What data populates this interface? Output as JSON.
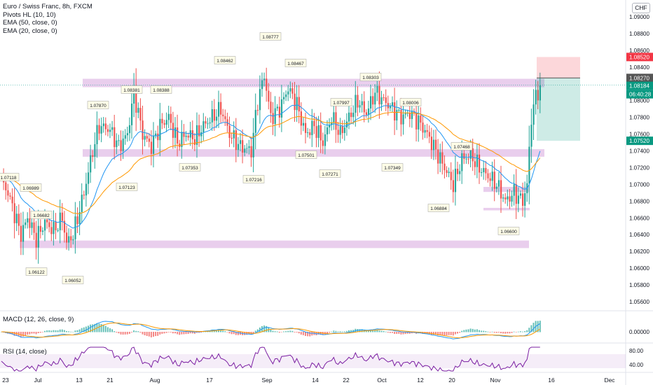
{
  "header": {
    "symbol": "Euro / Swiss Franc, 8h, FXCM",
    "indicators": [
      "Pivots HL (10, 10)",
      "EMA (50, close, 0)",
      "EMA (20, close, 0)"
    ],
    "currency": "CHF"
  },
  "macd_label": "MACD (12, 26, close, 9)",
  "rsi_label": "RSI (14, close)",
  "colors": {
    "up": "#26a69a",
    "down": "#ef5350",
    "ema20": "#2196f3",
    "ema50": "#ff9800",
    "zone": "#ce93d8",
    "rsi": "#7b1fa2",
    "target": "#089981",
    "stop": "#f23645",
    "pivot_box": "#c8e6c9"
  },
  "chart_data": [
    {
      "type": "candlestick",
      "title": "Euro / Swiss Franc, 8h, FXCM",
      "ylim": [
        1.055,
        1.092
      ],
      "y_ticks": [
        1.09,
        1.088,
        1.086,
        1.084,
        1.082,
        1.08,
        1.078,
        1.076,
        1.074,
        1.072,
        1.07,
        1.068,
        1.066,
        1.064,
        1.062,
        1.06,
        1.058,
        1.056
      ],
      "x_ticks": [
        "23",
        "Jul",
        "13",
        "21",
        "Aug",
        "17",
        "Sep",
        "14",
        "22",
        "Oct",
        "12",
        "20",
        "Nov",
        "16",
        "Dec"
      ],
      "price_anchors": [
        [
          0,
          1.0705
        ],
        [
          3,
          1.069
        ],
        [
          6,
          1.0665
        ],
        [
          9,
          1.064
        ],
        [
          12,
          1.066
        ],
        [
          16,
          1.0635
        ],
        [
          20,
          1.0655
        ],
        [
          24,
          1.0645
        ],
        [
          28,
          1.066
        ],
        [
          30,
          1.063
        ],
        [
          33,
          1.064
        ],
        [
          38,
          1.069
        ],
        [
          42,
          1.074
        ],
        [
          45,
          1.077
        ],
        [
          50,
          1.0765
        ],
        [
          54,
          1.0745
        ],
        [
          58,
          1.076
        ],
        [
          61,
          1.081
        ],
        [
          65,
          1.076
        ],
        [
          69,
          1.0745
        ],
        [
          73,
          1.077
        ],
        [
          77,
          1.078
        ],
        [
          81,
          1.075
        ],
        [
          85,
          1.076
        ],
        [
          89,
          1.0755
        ],
        [
          93,
          1.077
        ],
        [
          97,
          1.078
        ],
        [
          101,
          1.079
        ],
        [
          105,
          1.076
        ],
        [
          110,
          1.0745
        ],
        [
          115,
          1.074
        ],
        [
          118,
          1.08
        ],
        [
          121,
          1.083
        ],
        [
          124,
          1.078
        ],
        [
          128,
          1.079
        ],
        [
          132,
          1.0815
        ],
        [
          136,
          1.0795
        ],
        [
          140,
          1.076
        ],
        [
          144,
          1.077
        ],
        [
          148,
          1.075
        ],
        [
          152,
          1.078
        ],
        [
          156,
          1.076
        ],
        [
          160,
          1.078
        ],
        [
          164,
          1.08
        ],
        [
          168,
          1.0785
        ],
        [
          172,
          1.081
        ],
        [
          176,
          1.08
        ],
        [
          180,
          1.079
        ],
        [
          184,
          1.078
        ],
        [
          188,
          1.0785
        ],
        [
          192,
          1.0775
        ],
        [
          196,
          1.076
        ],
        [
          200,
          1.074
        ],
        [
          204,
          1.072
        ],
        [
          208,
          1.07
        ],
        [
          212,
          1.073
        ],
        [
          216,
          1.0735
        ],
        [
          220,
          1.072
        ],
        [
          224,
          1.071
        ],
        [
          228,
          1.07
        ],
        [
          232,
          1.068
        ],
        [
          236,
          1.069
        ],
        [
          240,
          1.068
        ],
        [
          242,
          1.07
        ],
        [
          244,
          1.078
        ],
        [
          246,
          1.0805
        ],
        [
          248,
          1.0818
        ]
      ],
      "support_resistance_zones": [
        [
          1.0816,
          1.0826
        ],
        [
          1.0733,
          1.0742
        ],
        [
          1.0691,
          1.0697
        ],
        [
          1.0669,
          1.0672
        ],
        [
          1.0624,
          1.0633
        ]
      ],
      "pivot_labels": [
        {
          "value": "1.07118",
          "kind": "high"
        },
        {
          "value": "1.06989",
          "kind": "high"
        },
        {
          "value": "1.06682",
          "kind": "high"
        },
        {
          "value": "1.07870",
          "kind": "high"
        },
        {
          "value": "1.08381",
          "kind": "high"
        },
        {
          "value": "1.08388",
          "kind": "high"
        },
        {
          "value": "1.08462",
          "kind": "high"
        },
        {
          "value": "1.08777",
          "kind": "high"
        },
        {
          "value": "1.08467",
          "kind": "high"
        },
        {
          "value": "1.08303",
          "kind": "high"
        },
        {
          "value": "1.07997",
          "kind": "high"
        },
        {
          "value": "1.08006",
          "kind": "high"
        },
        {
          "value": "1.07468",
          "kind": "high"
        },
        {
          "value": "1.06122",
          "kind": "low"
        },
        {
          "value": "1.06052",
          "kind": "low"
        },
        {
          "value": "1.07123",
          "kind": "low"
        },
        {
          "value": "1.07353",
          "kind": "low"
        },
        {
          "value": "1.07216",
          "kind": "low"
        },
        {
          "value": "1.07501",
          "kind": "low"
        },
        {
          "value": "1.07271",
          "kind": "low"
        },
        {
          "value": "1.07349",
          "kind": "low"
        },
        {
          "value": "1.06884",
          "kind": "low"
        },
        {
          "value": "1.06600",
          "kind": "low"
        }
      ],
      "position": {
        "entry": 1.0827,
        "stop": 1.0852,
        "target": 1.0752
      },
      "price_labels": [
        {
          "value": "1.08520",
          "kind": "stop"
        },
        {
          "value": "1.08270",
          "kind": "entry"
        },
        {
          "value": "1.08184",
          "kind": "last"
        },
        {
          "value": "06:40:28",
          "kind": "countdown"
        },
        {
          "value": "1.07520",
          "kind": "target"
        }
      ]
    },
    {
      "type": "bar",
      "title": "MACD (12, 26, close, 9)",
      "y_ticks": [
        "0.00000"
      ],
      "series": [
        {
          "name": "MACD"
        },
        {
          "name": "Signal"
        },
        {
          "name": "Histogram"
        }
      ]
    },
    {
      "type": "line",
      "title": "RSI (14, close)",
      "y_ticks": [
        "80.00",
        "40.00"
      ],
      "band": [
        30,
        70
      ]
    }
  ]
}
